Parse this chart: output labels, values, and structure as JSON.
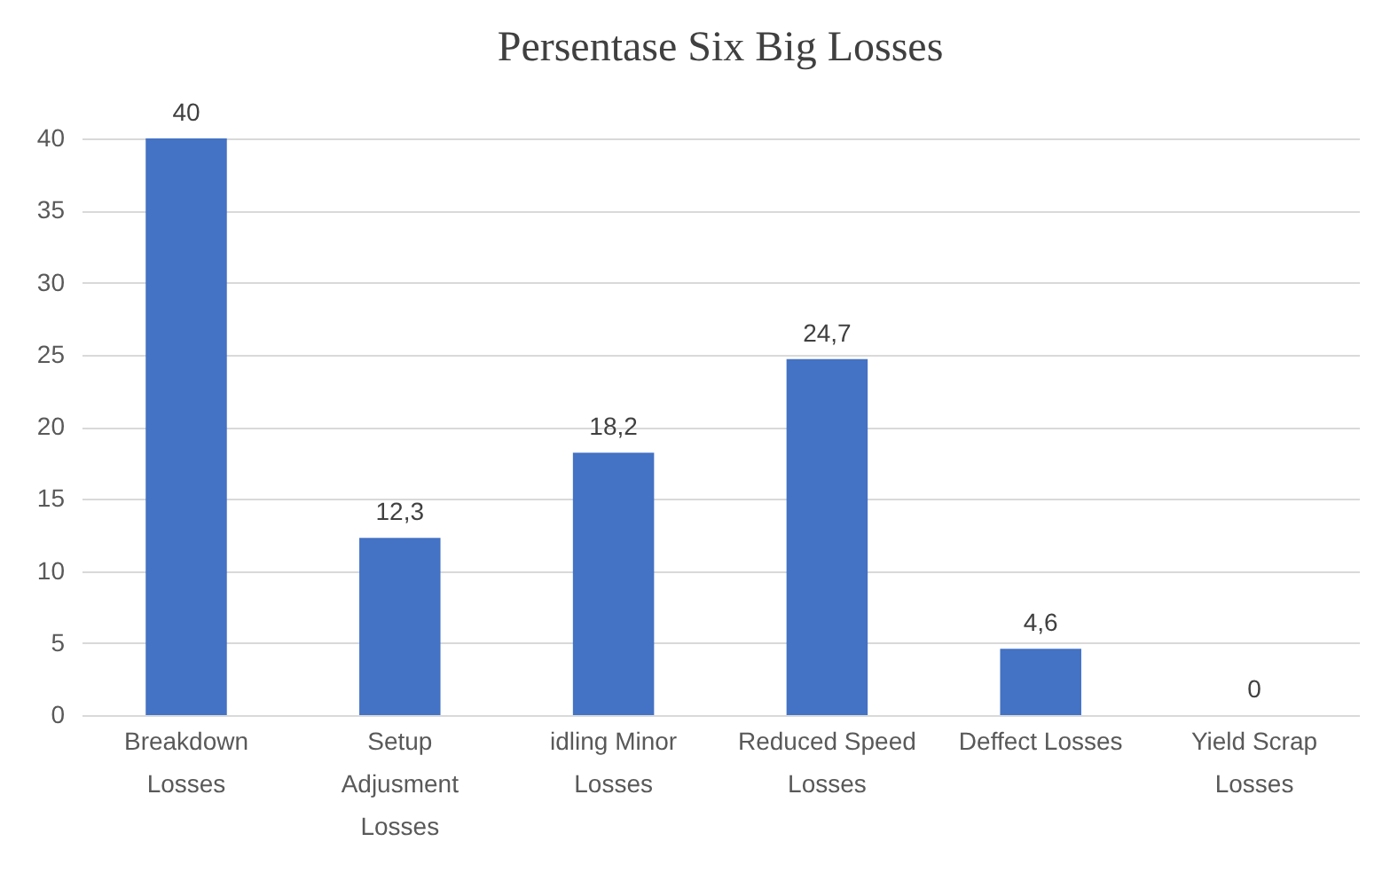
{
  "chart_data": {
    "type": "bar",
    "title": "Persentase Six Big Losses",
    "categories": [
      "Breakdown Losses",
      "Setup Adjusment Losses",
      "idling Minor Losses",
      "Reduced Speed Losses",
      "Deffect Losses",
      "Yield Scrap Losses"
    ],
    "values": [
      40,
      12.3,
      18.2,
      24.7,
      4.6,
      0
    ],
    "value_labels": [
      "40",
      "12,3",
      "18,2",
      "24,7",
      "4,6",
      "0"
    ],
    "color": "#4472c4",
    "ylim": [
      0,
      40
    ],
    "yticks": [
      0,
      5,
      10,
      15,
      20,
      25,
      30,
      35,
      40
    ],
    "grid": "y"
  }
}
